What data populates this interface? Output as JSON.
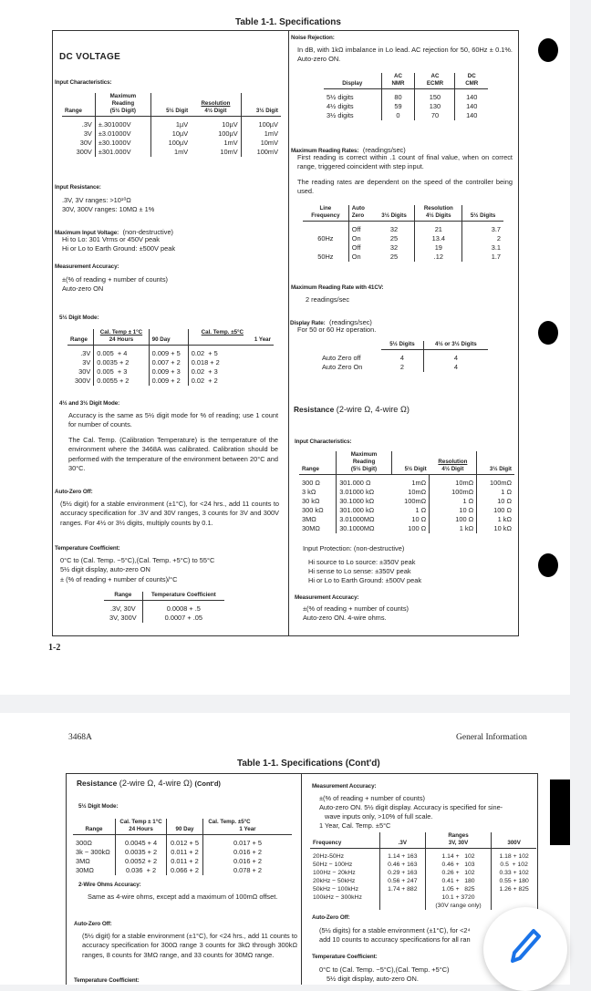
{
  "viewer": {
    "background": "#f1f2f4",
    "accent": "#1a73e8",
    "edit_icon": "pencil-icon"
  },
  "page1": {
    "table_title": "Table 1-1. Specifications",
    "page_number": "1-2",
    "left": {
      "section": "DC VOLTAGE",
      "input_char": "Input Characteristics:",
      "t1": {
        "h_range": "Range",
        "h_max": [
          "Maximum",
          "Reading",
          "(5½ Digit)"
        ],
        "h_res": "Resolution",
        "h_5": "5½ Digit",
        "h_4": "4½ Digit",
        "h_3": "3½ Digit",
        "rows": [
          [
            ".3V",
            "±.301000V",
            "1µV",
            "10µV",
            "100µV"
          ],
          [
            "3V",
            "±3.01000V",
            "10µV",
            "100µV",
            "1mV"
          ],
          [
            "30V",
            "±30.1000V",
            "100µV",
            "1mV",
            "10mV"
          ],
          [
            "300V",
            "±301.000V",
            "1mV",
            "10mV",
            "100mV"
          ]
        ]
      },
      "input_res": "Input Resistance:",
      "input_res_lines": [
        ".3V, 3V ranges:  >10¹⁰Ω",
        "30V, 300V ranges:  10MΩ ± 1%"
      ],
      "max_in": "Maximum Input Voltage:",
      "max_in_note": "(non-destructive)",
      "max_in_lines": [
        "Hi to Lo:  301 Vrms or 450V peak",
        "Hi or Lo to Earth Ground:  ±500V peak"
      ],
      "meas_acc": "Measurement Accuracy:",
      "meas_acc_lines": [
        "±(% of reading + number of counts)",
        "Auto-zero ON"
      ],
      "mode5": "5½ Digit Mode:",
      "t2": {
        "h_range": "Range",
        "h_cal1": "Cal. Temp ± 1°C",
        "h_24": "24 Hours",
        "h_cal5": "Cal. Temp. ±5°C",
        "h_90": "90 Day",
        "h_1y": "1 Year",
        "rows": [
          [
            ".3V",
            "0.005  + 4",
            "0.009 + 5",
            "0.02  + 5"
          ],
          [
            "3V",
            "0.0035 + 2",
            "0.007 + 2",
            "0.018 + 2"
          ],
          [
            "30V",
            "0.005  + 3",
            "0.009 + 3",
            "0.02  + 3"
          ],
          [
            "300V",
            "0.0055 + 2",
            "0.009 + 2",
            "0.02  + 2"
          ]
        ]
      },
      "mode43": "4½ and 3½ Digit Mode:",
      "mode43_text": "Accuracy is the same as 5½ digit mode for % of reading; use 1 count for number of counts.",
      "cal_text": "The Cal. Temp. (Calibration Temperature) is the temperature of the environment where the 3468A was calibrated. Calibration should be performed with the temperature of the environment between 20°C and 30°C.",
      "azoff": "Auto-Zero Off:",
      "azoff_text": "(5½ digit) for a stable environment (±1°C), for <24 hrs., add 11 counts to accuracy specification for .3V and 30V ranges, 3 counts for 3V and 300V ranges. For 4½ or 3½ digits, multiply counts by 0.1.",
      "tempco": "Temperature Coefficient:",
      "tempco_lines": [
        "0°C to (Cal. Temp. −5°C),(Cal. Temp. +5°C) to 55°C",
        "5½ digit display, auto-zero ON",
        "± (% of reading + number of counts)/°C"
      ],
      "t3": {
        "h_range": "Range",
        "h_tc": "Temperature Coefficient",
        "rows": [
          [
            ".3V, 30V",
            "0.0008 + .5"
          ],
          [
            "3V, 300V",
            "0.0007 + .05"
          ]
        ]
      }
    },
    "right": {
      "noise": "Noise Rejection:",
      "noise_text": "In dB, with 1kΩ imbalance in Lo lead. AC rejection for 50, 60Hz ± 0.1%. Auto-zero ON.",
      "t4": {
        "h_disp": "Display",
        "h_nmr": [
          "AC",
          "NMR"
        ],
        "h_ecmr": [
          "AC",
          "ECMR"
        ],
        "h_cmr": [
          "DC",
          "CMR"
        ],
        "rows": [
          [
            "5½ digits",
            "80",
            "150",
            "140"
          ],
          [
            "4½ digits",
            "59",
            "130",
            "140"
          ],
          [
            "3½ digits",
            "0",
            "70",
            "140"
          ]
        ]
      },
      "maxrate": "Maximum Reading Rates:",
      "maxrate_note": "(readings/sec)",
      "maxrate_text": "First reading is correct within .1 count of final value, when on correct range, triggered coincident with step input.",
      "rate_text": "The reading rates are dependent on the speed of the controller being used.",
      "t5": {
        "h_line": [
          "Line",
          "Frequency"
        ],
        "h_az": [
          "Auto",
          "Zero"
        ],
        "h_res": "Resolution",
        "h_3": "3½ Digits",
        "h_4": "4½ Digits",
        "h_5": "5½ Digits",
        "rows": [
          [
            "",
            "Off",
            "32",
            "21",
            "3.7"
          ],
          [
            "60Hz",
            "On",
            "25",
            "13.4",
            "2"
          ],
          [
            "",
            "Off",
            "32",
            "19",
            "3.1"
          ],
          [
            "50Hz",
            "On",
            "25",
            ".12",
            "1.7"
          ]
        ]
      },
      "rate41": "Maximum Reading Rate with 41CV:",
      "rate41_val": "2 readings/sec",
      "disprate": "Display Rate:",
      "disprate_note": "(readings/sec)",
      "disprate_text": "For 50 or 60 Hz operation.",
      "t6": {
        "h_5": "5½ Digits",
        "h_43": "4½ or 3½ Digits",
        "rows": [
          [
            "Auto Zero off",
            "4",
            "4"
          ],
          [
            "Auto Zero On",
            "2",
            "4"
          ]
        ]
      },
      "res_title": "Resistance",
      "res_sub": "(2-wire Ω, 4-wire Ω)",
      "input_char": "Input Characteristics:",
      "t7": {
        "h_range": "Range",
        "h_max": [
          "Maximum",
          "Reading",
          "(5½ Digit)"
        ],
        "h_res": "Resolution",
        "h_5": "5½ Digit",
        "h_4": "4½ Digit",
        "h_3": "3½ Digit",
        "rows": [
          [
            "300 Ω",
            "301.000 Ω",
            "1mΩ",
            "10mΩ",
            "100mΩ"
          ],
          [
            "3 kΩ",
            "3.01000 kΩ",
            "10mΩ",
            "100mΩ",
            "1 Ω"
          ],
          [
            "30 kΩ",
            "30.1000 kΩ",
            "100mΩ",
            "1 Ω",
            "10 Ω"
          ],
          [
            "300 kΩ",
            "301.000 kΩ",
            "1 Ω",
            "10 Ω",
            "100 Ω"
          ],
          [
            "3MΩ",
            "3.01000MΩ",
            "10 Ω",
            "100 Ω",
            "1 kΩ"
          ],
          [
            "30MΩ",
            "30.1000MΩ",
            "100 Ω",
            "1 kΩ",
            "10 kΩ"
          ]
        ]
      },
      "protect": "Input Protection: (non-destructive)",
      "protect_lines": [
        "Hi source to Lo source:  ±350V peak",
        "Hi sense to Lo sense:  ±350V peak",
        "Hi or Lo to Earth Ground:  ±500V peak"
      ],
      "meas_acc": "Measurement Accuracy:",
      "meas_acc_lines": [
        "±(% of reading + number of counts)",
        "Auto-zero ON. 4-wire ohms."
      ]
    }
  },
  "page2": {
    "header_left": "3468A",
    "header_right": "General Information",
    "table_title": "Table 1-1. Specifications (Cont'd)",
    "left": {
      "res_title": "Resistance",
      "res_sub": "(2-wire Ω, 4-wire Ω)",
      "res_cont": "(Cont'd)",
      "mode5": "5½ Digit Mode:",
      "t1": {
        "h_range": "Range",
        "h_cal1": "Cal. Temp ± 1°C",
        "h_24": "24 Hours",
        "h_cal5": "Cal. Temp. ±5°C",
        "h_90": "90 Day",
        "h_1y": "1 Year",
        "rows": [
          [
            "300Ω",
            "0.0045 + 4",
            "0.012 + 5",
            "0.017 + 5"
          ],
          [
            "3k − 300kΩ",
            "0.0035 + 2",
            "0.011 + 2",
            "0.016 + 2"
          ],
          [
            "3MΩ",
            "0.0052 + 2",
            "0.011 + 2",
            "0.016 + 2"
          ],
          [
            "30MΩ",
            "0.036  + 2",
            "0.066 + 2",
            "0.078 + 2"
          ]
        ]
      },
      "twowire": "2-Wire Ohms Accuracy:",
      "twowire_text": "Same as 4-wire ohms, except add a maximum of 100mΩ offset.",
      "azoff": "Auto-Zero Off:",
      "azoff_text": "(5½ digit) for a stable environment (±1°C), for <24 hrs., add 11 counts to accuracy specification for 300Ω range 3 counts for 3kΩ through 300kΩ ranges, 8 counts for 3MΩ range, and 33 counts for 30MΩ range.",
      "tempco": "Temperature Coefficient:"
    },
    "right": {
      "meas_acc": "Measurement Accuracy:",
      "meas_acc_lines": [
        "±(% of reading + number of counts)",
        "Auto-zero ON. 5½ digit display. Accuracy is specified for sine-",
        "wave inputs only, >10% of full scale.",
        "1 Year, Cal. Temp. ±5°C"
      ],
      "t2": {
        "h_freq": "Frequency",
        "h_ranges": "Ranges",
        "h_3": ".3V",
        "h_330": "3V, 30V",
        "h_300": "300V",
        "rows": [
          [
            "20Hz-50Hz",
            "1.14 + 163",
            "1.14 +   102",
            "1.18 + 102"
          ],
          [
            "50Hz − 100Hz",
            "0.46 + 163",
            "0.46 +   103",
            "0.5  + 102"
          ],
          [
            "100Hz − 20kHz",
            "0.29 + 163",
            "0.26 +   102",
            "0.33 + 102"
          ],
          [
            "20kHz − 50kHz",
            "0.56 + 247",
            "0.41 +   180",
            "0.55 + 180"
          ],
          [
            "50kHz − 100kHz",
            "1.74 + 882",
            "1.05 +   825",
            "1.26 + 825"
          ],
          [
            "100kHz − 300kHz",
            "",
            "10.1 + 3720",
            ""
          ]
        ],
        "note": "(30V range only)"
      },
      "azoff": "Auto-Zero Off:",
      "azoff_lines": [
        "(5½ digits) for a stable environment (±1°C), for <2⁴",
        "add 10 counts to accuracy specifications for all ran"
      ],
      "tempco": "Temperature Coefficient:",
      "tempco_lines": [
        "0°C to (Cal. Temp. −5°C),(Cal. Temp. +5°C)",
        "5½ digit display, auto-zero ON."
      ]
    }
  }
}
